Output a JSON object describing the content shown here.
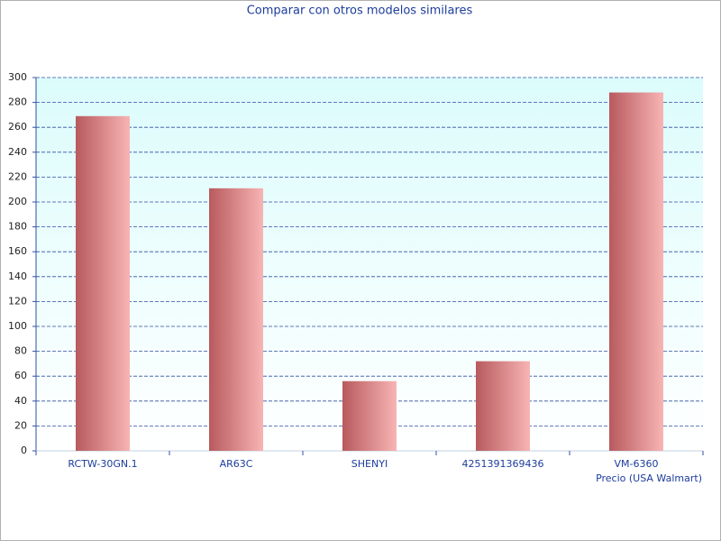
{
  "chart_data": {
    "type": "bar",
    "title": "Comparar con otros modelos similares",
    "x_label": "Precio (USA Walmart)",
    "categories": [
      "RCTW-30GN.1",
      "AR63C",
      "SHENYI",
      "4251391369436",
      "VM-6360"
    ],
    "values": [
      269,
      211,
      56,
      72,
      288
    ],
    "ylim": [
      0,
      300
    ],
    "yticks": [
      0,
      20,
      40,
      60,
      80,
      100,
      120,
      140,
      160,
      180,
      200,
      220,
      240,
      260,
      280,
      300
    ],
    "grid": true
  }
}
